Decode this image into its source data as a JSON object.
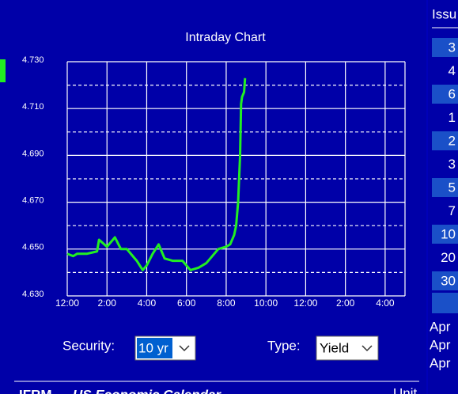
{
  "chart_data": {
    "type": "line",
    "title": "Intraday Chart",
    "x": [
      0,
      0.3,
      0.5,
      1.0,
      1.5,
      1.6,
      2.0,
      2.4,
      2.7,
      3.0,
      3.2,
      3.5,
      3.8,
      4.0,
      4.3,
      4.6,
      4.9,
      5.3,
      5.8,
      6.0,
      6.2,
      6.6,
      7.0,
      7.3,
      7.6,
      8.0,
      8.2,
      8.4,
      8.5,
      8.6,
      8.7,
      8.75,
      8.8,
      8.9,
      8.95
    ],
    "values": [
      4.648,
      4.647,
      4.648,
      4.648,
      4.649,
      4.654,
      4.651,
      4.655,
      4.65,
      4.65,
      4.648,
      4.645,
      4.641,
      4.643,
      4.648,
      4.652,
      4.646,
      4.645,
      4.645,
      4.643,
      4.641,
      4.642,
      4.644,
      4.647,
      4.65,
      4.651,
      4.652,
      4.656,
      4.66,
      4.67,
      4.69,
      4.712,
      4.715,
      4.717,
      4.723
    ],
    "color": "#22ee22",
    "xlim": [
      0,
      17
    ],
    "xticks": [
      {
        "value": 0,
        "label": "12:00"
      },
      {
        "value": 2,
        "label": "2:00"
      },
      {
        "value": 4,
        "label": "4:00"
      },
      {
        "value": 6,
        "label": "6:00"
      },
      {
        "value": 8,
        "label": "8:00"
      },
      {
        "value": 10,
        "label": "10:00"
      },
      {
        "value": 12,
        "label": "12:00"
      },
      {
        "value": 14,
        "label": "2:00"
      },
      {
        "value": 16,
        "label": "4:00"
      }
    ],
    "ylim": [
      4.63,
      4.73
    ],
    "yticks": [
      {
        "value": 4.63,
        "label": "4.630"
      },
      {
        "value": 4.65,
        "label": "4.650"
      },
      {
        "value": 4.67,
        "label": "4.670"
      },
      {
        "value": 4.69,
        "label": "4.690"
      },
      {
        "value": 4.71,
        "label": "4.710"
      },
      {
        "value": 4.73,
        "label": "4.730"
      }
    ],
    "yminorticks": [
      4.64,
      4.66,
      4.68,
      4.7,
      4.72
    ],
    "grid": true
  },
  "controls": {
    "security_label": "Security:",
    "security_value": "10 yr",
    "type_label": "Type:",
    "type_value": "Yield"
  },
  "side_panel": {
    "header": "Issu",
    "items": [
      "3",
      "4",
      "6",
      "1",
      "2",
      "3",
      "5",
      "7",
      "10",
      "20",
      "30"
    ],
    "dates": [
      "Apr",
      "Apr",
      "Apr"
    ]
  },
  "footer": {
    "left": "IFRM",
    "title": "US Economic Calendar",
    "unit": "Unit"
  }
}
